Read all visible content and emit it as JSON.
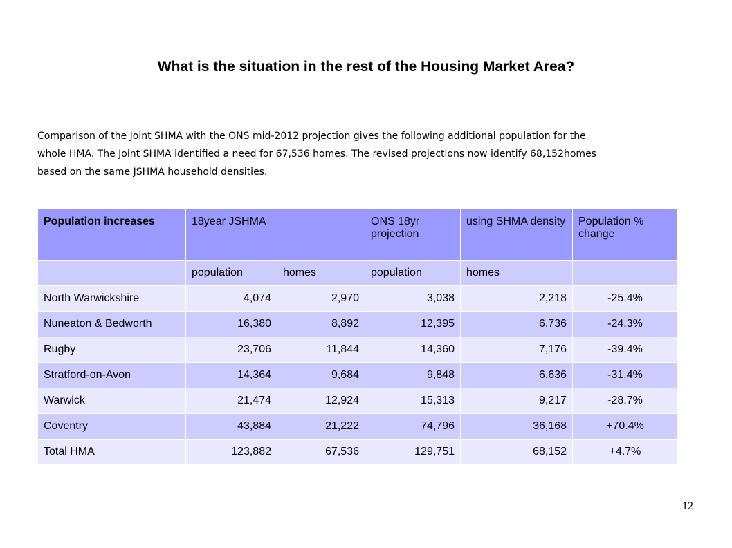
{
  "title": "What is the situation in the rest of the Housing Market Area?",
  "intro_lines": [
    "Comparison of the Joint SHMA with the ONS mid-2012 projection gives the following  additional population for the",
    "whole HMA. The Joint SHMA identified a need for 67,536 homes. The revised projections now identify 68,152homes",
    "based on the same JSHMA household densities."
  ],
  "table": {
    "header": [
      "Population increases",
      "18year JSHMA",
      "",
      "ONS 18yr projection",
      "using SHMA density",
      "Population % change"
    ],
    "subheader": [
      "",
      "population",
      "homes",
      "population",
      "homes",
      ""
    ],
    "rows": [
      [
        "North Warwickshire",
        "4,074",
        "2,970",
        "3,038",
        "2,218",
        "-25.4%"
      ],
      [
        "Nuneaton & Bedworth",
        "16,380",
        "8,892",
        "12,395",
        "6,736",
        "-24.3%"
      ],
      [
        "Rugby",
        "23,706",
        "11,844",
        "14,360",
        "7,176",
        "-39.4%"
      ],
      [
        "Stratford-on-Avon",
        "14,364",
        "9,684",
        "9,848",
        "6,636",
        "-31.4%"
      ],
      [
        "Warwick",
        "21,474",
        "12,924",
        "15,313",
        "9,217",
        "-28.7%"
      ],
      [
        "Coventry",
        "43,884",
        "21,222",
        "74,796",
        "36,168",
        "+70.4%"
      ],
      [
        "Total HMA",
        "123,882",
        "67,536",
        "129,751",
        "68,152",
        "+4.7%"
      ]
    ]
  },
  "page_number": "12"
}
